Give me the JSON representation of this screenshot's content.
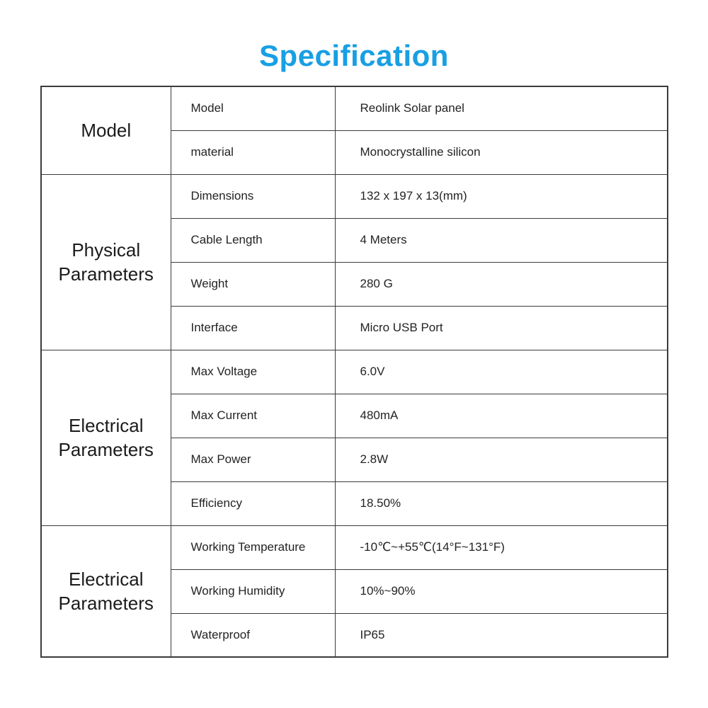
{
  "page": {
    "title": "Specification",
    "title_color": "#189fe4",
    "border_color": "#3b3b3b",
    "text_color": "#262626"
  },
  "table": {
    "sections": [
      {
        "category": "Model",
        "rows": [
          {
            "label": "Model",
            "value": "Reolink Solar panel"
          },
          {
            "label": "material",
            "value": "Monocrystalline silicon"
          }
        ]
      },
      {
        "category": "Physical Parameters",
        "rows": [
          {
            "label": "Dimensions",
            "value": "132 x 197 x 13(mm)"
          },
          {
            "label": "Cable Length",
            "value": "4 Meters"
          },
          {
            "label": "Weight",
            "value": "280 G"
          },
          {
            "label": "Interface",
            "value": "Micro USB Port"
          }
        ]
      },
      {
        "category": "Electrical Parameters",
        "rows": [
          {
            "label": "Max Voltage",
            "value": "6.0V"
          },
          {
            "label": "Max Current",
            "value": "480mA"
          },
          {
            "label": "Max Power",
            "value": "2.8W"
          },
          {
            "label": "Efficiency",
            "value": "18.50%"
          }
        ]
      },
      {
        "category": "Electrical Parameters",
        "rows": [
          {
            "label": "Working Temperature",
            "value": "-10℃~+55℃(14°F~131°F)"
          },
          {
            "label": "Working Humidity",
            "value": "10%~90%"
          },
          {
            "label": "Waterproof",
            "value": "IP65"
          }
        ]
      }
    ]
  }
}
